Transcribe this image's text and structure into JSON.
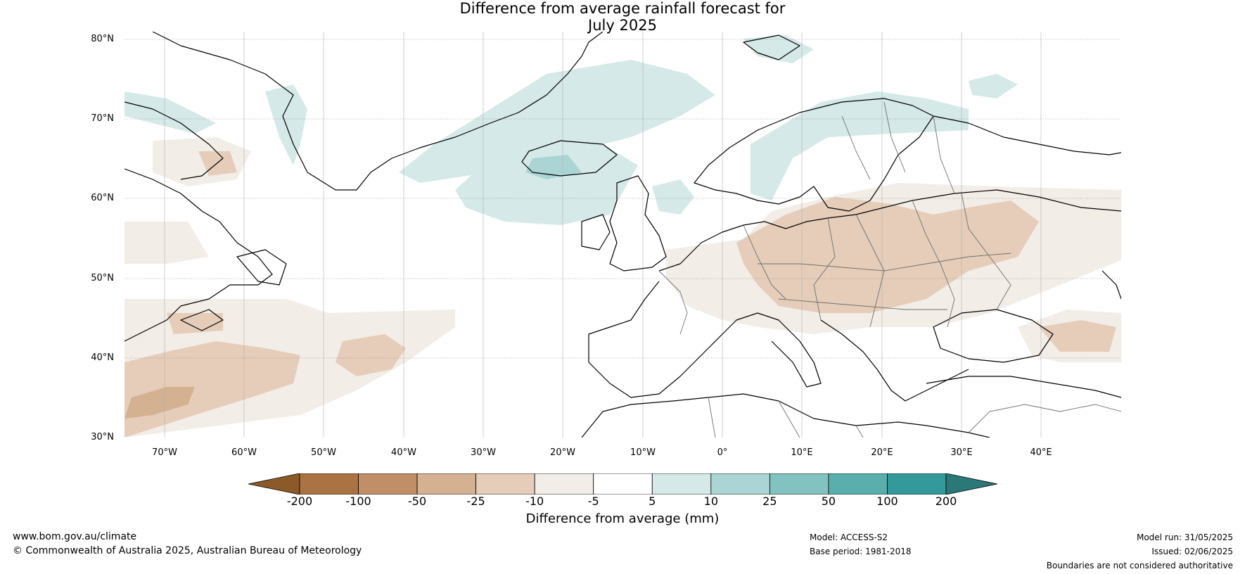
{
  "title_line1": "Difference from average rainfall forecast for",
  "title_line2": "July 2025",
  "map": {
    "lat_labels": [
      "80°N",
      "70°N",
      "60°N",
      "50°N",
      "40°N",
      "30°N"
    ],
    "lon_labels": [
      "70°W",
      "60°W",
      "50°W",
      "40°W",
      "30°W",
      "20°W",
      "10°W",
      "0°",
      "10°E",
      "20°E",
      "30°E",
      "40°E"
    ],
    "extent": {
      "lon": [
        -75,
        50
      ],
      "lat": [
        30,
        81
      ]
    },
    "gridlines": true
  },
  "colorbar": {
    "ticks": [
      "-200",
      "-100",
      "-50",
      "-25",
      "-10",
      "-5",
      "5",
      "10",
      "25",
      "50",
      "100",
      "200"
    ],
    "colors": [
      "#8c5a28",
      "#ab7344",
      "#c08e67",
      "#d4b190",
      "#e5cdb9",
      "#f3ede7",
      "#ffffff",
      "#d4e9e8",
      "#aad5d4",
      "#82c2c0",
      "#5aaeac",
      "#34999a",
      "#2b7879"
    ],
    "label": "Difference from average (mm)"
  },
  "footer": {
    "website": "www.bom.gov.au/climate",
    "copyright": "© Commonwealth of Australia 2025, Australian Bureau of Meteorology",
    "model": "Model: ACCESS-S2",
    "base_period": "Base period: 1981-2018",
    "model_run": "Model run: 31/05/2025",
    "issued": "Issued: 02/06/2025",
    "disclaimer": "Boundaries are not considered authoritative"
  }
}
